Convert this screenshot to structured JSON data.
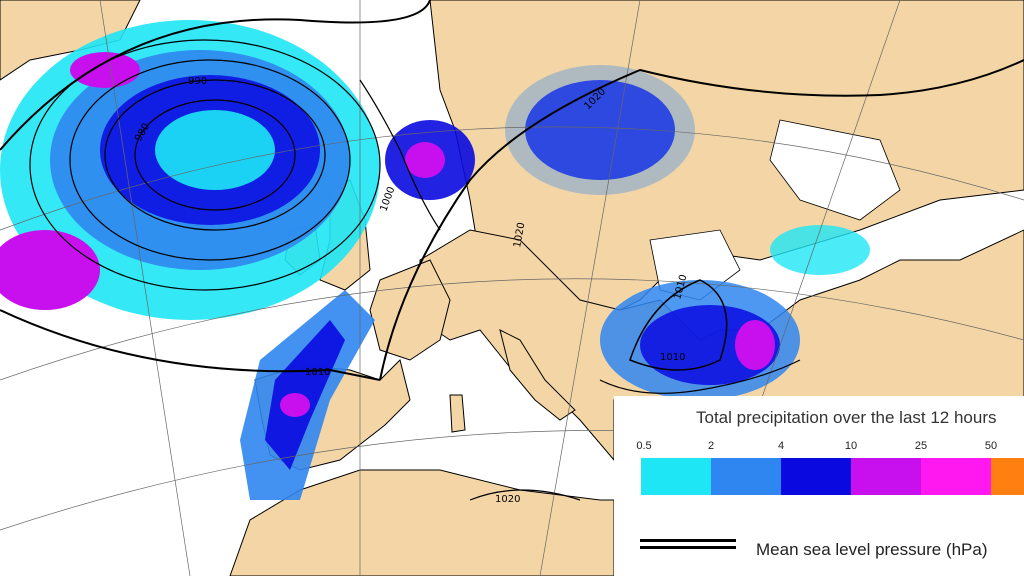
{
  "map": {
    "isobar_labels": [
      "990",
      "980",
      "1000",
      "1010",
      "1020",
      "1020",
      "1010",
      "1010",
      "1020"
    ],
    "colors": {
      "land": "#f4d6a6",
      "sea": "#ffffff",
      "snow": "#ffffff",
      "coast": "#000000",
      "grid": "#666666"
    }
  },
  "legend": {
    "title": "Total precipitation over the last 12 hours",
    "ticks": [
      "0.5",
      "2",
      "4",
      "10",
      "25",
      "50"
    ],
    "colors": [
      "#1ee6f5",
      "#2f86f0",
      "#0a0ae0",
      "#c810ee",
      "#ff18f0",
      "#ff7f10"
    ],
    "pressure_label": "Mean sea level pressure (hPa)"
  }
}
